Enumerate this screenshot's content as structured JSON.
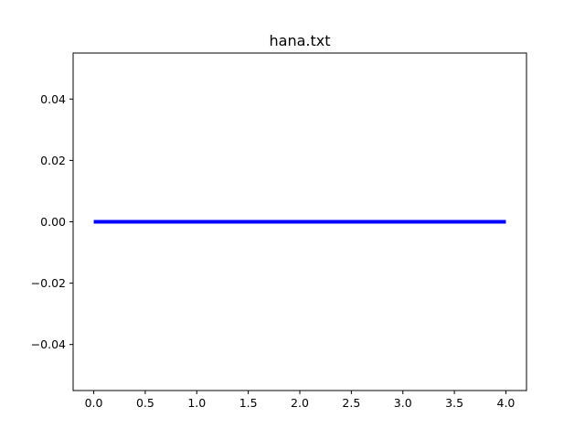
{
  "chart_data": {
    "type": "line",
    "title": "hana.txt",
    "xlabel": "",
    "ylabel": "",
    "xlim": [
      -0.2,
      4.2
    ],
    "ylim": [
      -0.055,
      0.055
    ],
    "x_ticks": [
      0.0,
      0.5,
      1.0,
      1.5,
      2.0,
      2.5,
      3.0,
      3.5,
      4.0
    ],
    "x_tick_labels": [
      "0.0",
      "0.5",
      "1.0",
      "1.5",
      "2.0",
      "2.5",
      "3.0",
      "3.5",
      "4.0"
    ],
    "y_ticks": [
      -0.04,
      -0.02,
      0.0,
      0.02,
      0.04
    ],
    "y_tick_labels": [
      "−0.04",
      "−0.02",
      "0.00",
      "0.02",
      "0.04"
    ],
    "grid": false,
    "series": [
      {
        "color": "#0000ff",
        "x": [
          0,
          1,
          2,
          3,
          4
        ],
        "y": [
          0,
          0,
          0,
          0,
          0
        ]
      }
    ]
  }
}
